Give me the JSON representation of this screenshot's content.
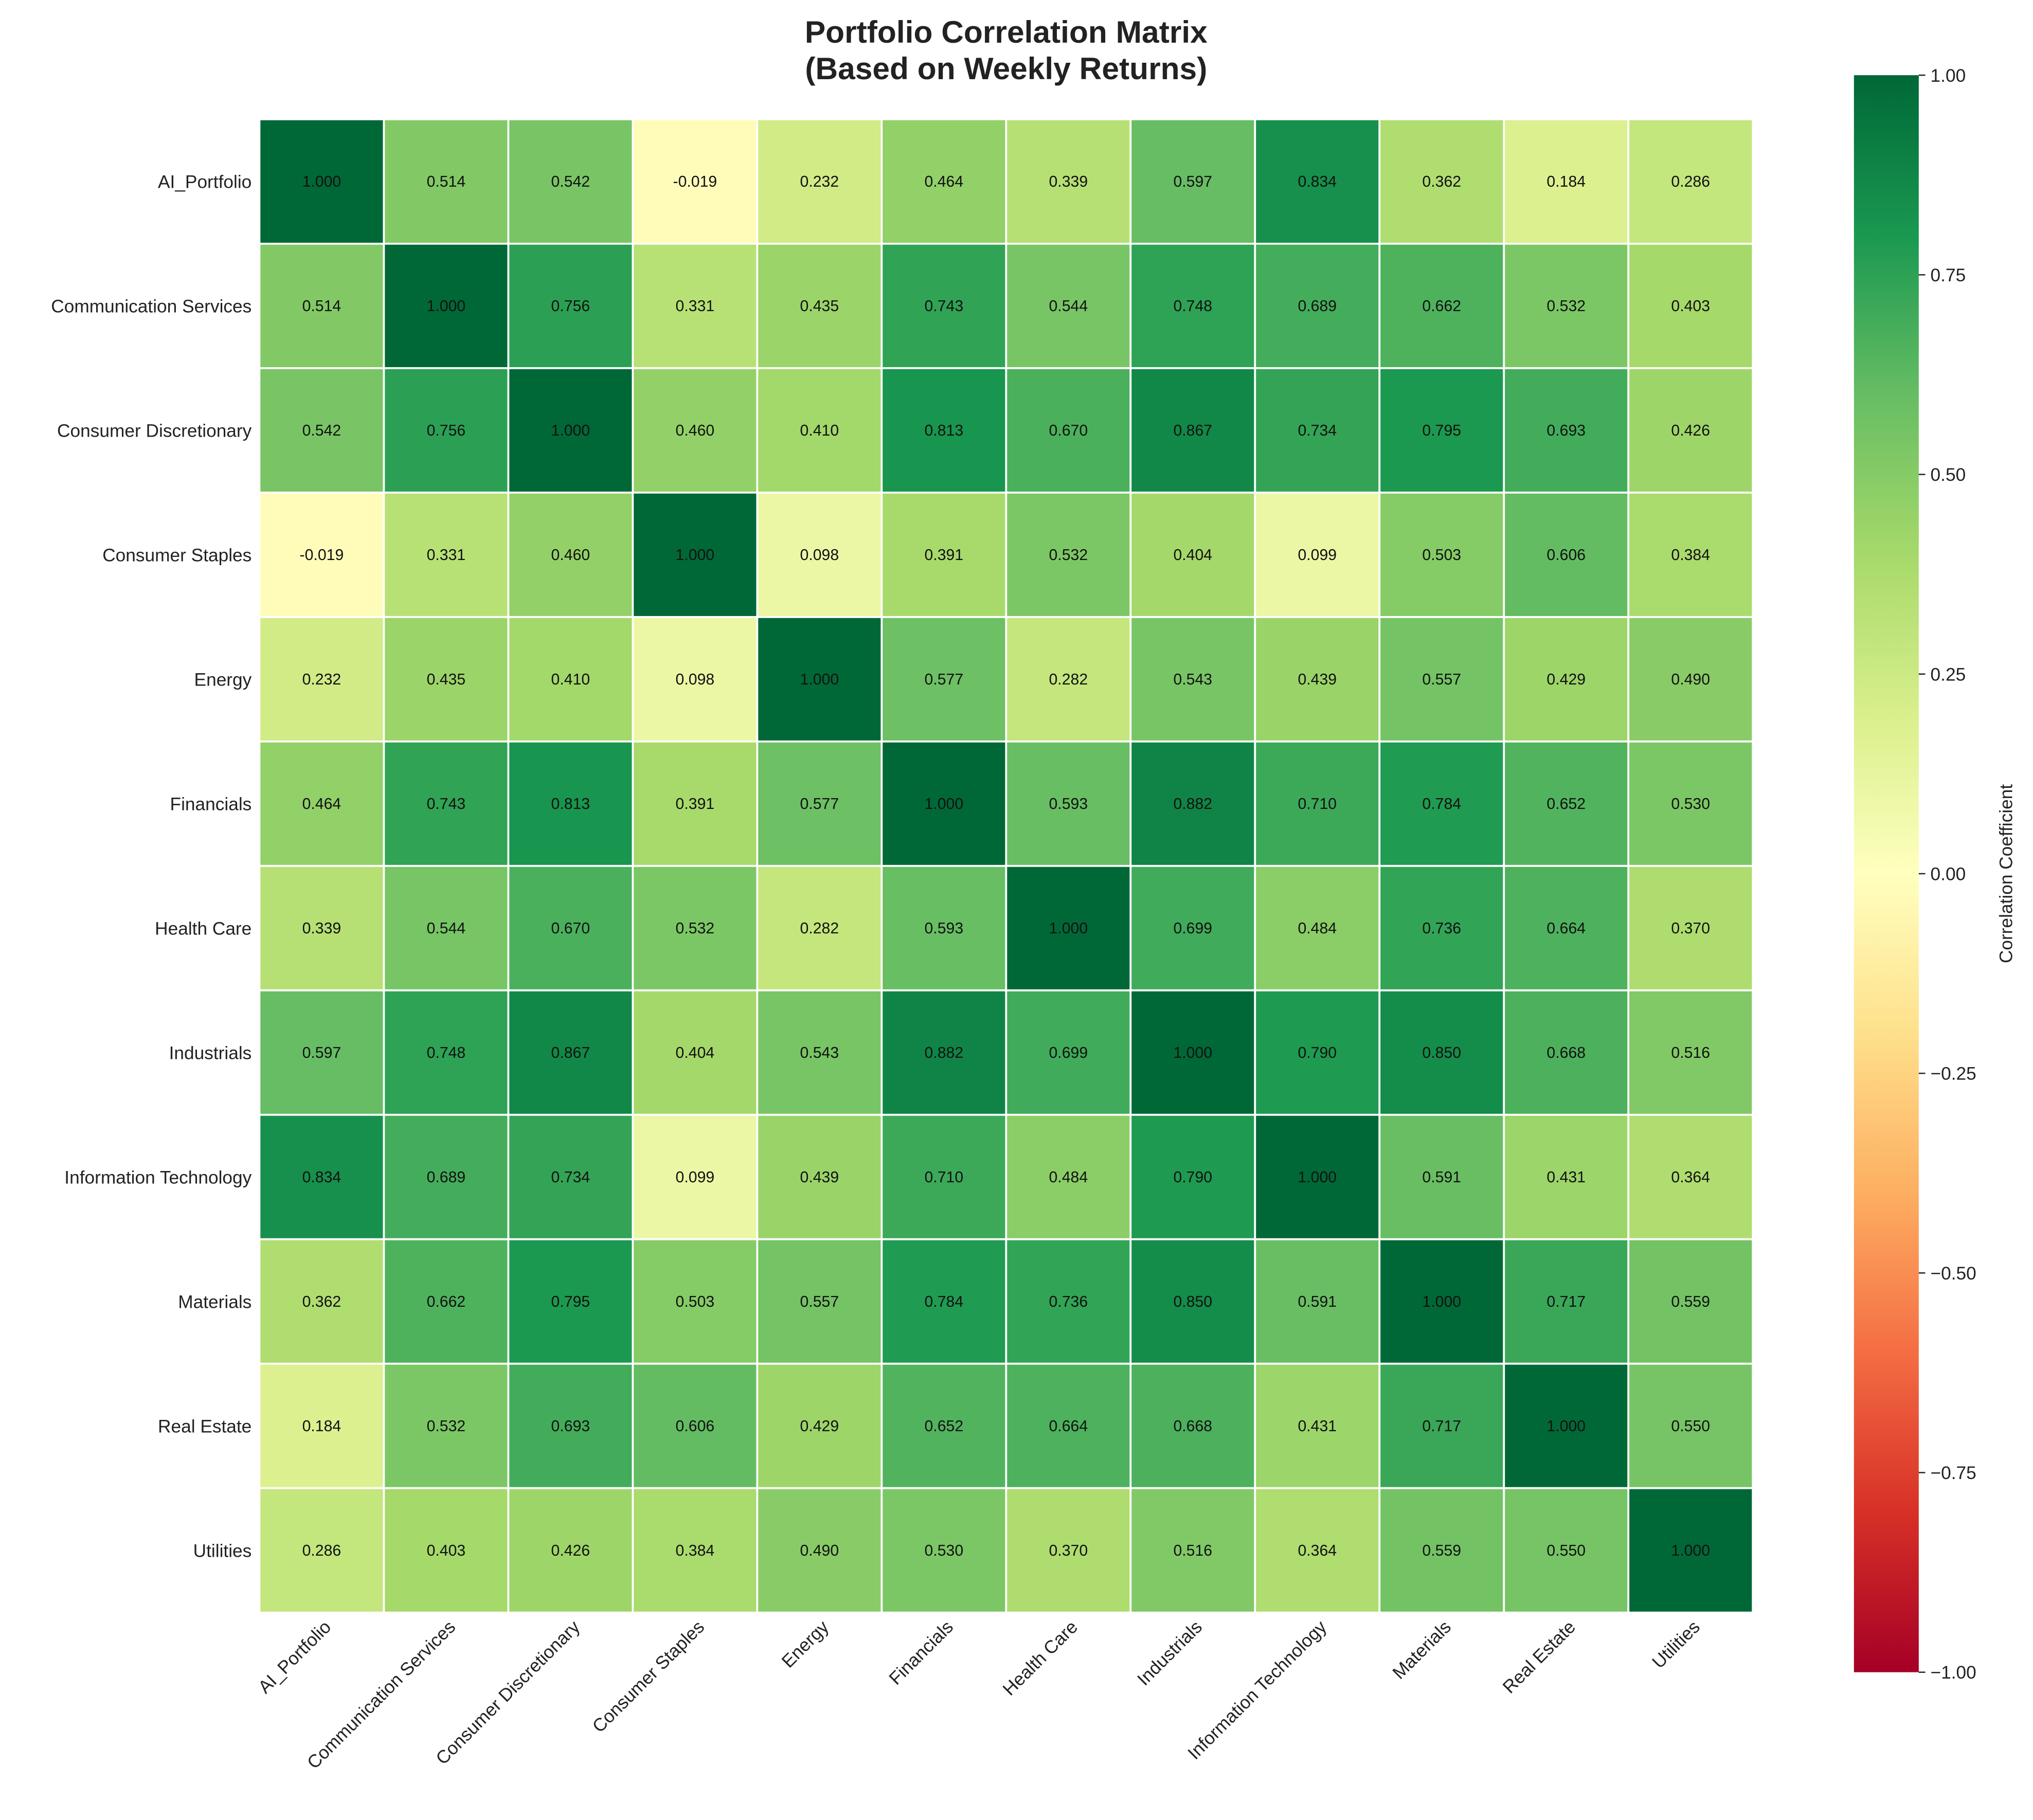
{
  "chart_data": {
    "type": "heatmap",
    "title": [
      "Portfolio Correlation Matrix",
      "(Based on Weekly Returns)"
    ],
    "labels": [
      "AI_Portfolio",
      "Communication Services",
      "Consumer Discretionary",
      "Consumer Staples",
      "Energy",
      "Financials",
      "Health Care",
      "Industrials",
      "Information Technology",
      "Materials",
      "Real Estate",
      "Utilities"
    ],
    "values": [
      [
        1.0,
        0.514,
        0.542,
        -0.019,
        0.232,
        0.464,
        0.339,
        0.597,
        0.834,
        0.362,
        0.184,
        0.286
      ],
      [
        0.514,
        1.0,
        0.756,
        0.331,
        0.435,
        0.743,
        0.544,
        0.748,
        0.689,
        0.662,
        0.532,
        0.403
      ],
      [
        0.542,
        0.756,
        1.0,
        0.46,
        0.41,
        0.813,
        0.67,
        0.867,
        0.734,
        0.795,
        0.693,
        0.426
      ],
      [
        -0.019,
        0.331,
        0.46,
        1.0,
        0.098,
        0.391,
        0.532,
        0.404,
        0.099,
        0.503,
        0.606,
        0.384
      ],
      [
        0.232,
        0.435,
        0.41,
        0.098,
        1.0,
        0.577,
        0.282,
        0.543,
        0.439,
        0.557,
        0.429,
        0.49
      ],
      [
        0.464,
        0.743,
        0.813,
        0.391,
        0.577,
        1.0,
        0.593,
        0.882,
        0.71,
        0.784,
        0.652,
        0.53
      ],
      [
        0.339,
        0.544,
        0.67,
        0.532,
        0.282,
        0.593,
        1.0,
        0.699,
        0.484,
        0.736,
        0.664,
        0.37
      ],
      [
        0.597,
        0.748,
        0.867,
        0.404,
        0.543,
        0.882,
        0.699,
        1.0,
        0.79,
        0.85,
        0.668,
        0.516
      ],
      [
        0.834,
        0.689,
        0.734,
        0.099,
        0.439,
        0.71,
        0.484,
        0.79,
        1.0,
        0.591,
        0.431,
        0.364
      ],
      [
        0.362,
        0.662,
        0.795,
        0.503,
        0.557,
        0.784,
        0.736,
        0.85,
        0.591,
        1.0,
        0.717,
        0.559
      ],
      [
        0.184,
        0.532,
        0.693,
        0.606,
        0.429,
        0.652,
        0.664,
        0.668,
        0.431,
        0.717,
        1.0,
        0.55
      ],
      [
        0.286,
        0.403,
        0.426,
        0.384,
        0.49,
        0.53,
        0.37,
        0.516,
        0.364,
        0.559,
        0.55,
        1.0
      ]
    ],
    "colormap": "RdYlGn",
    "vmin": -1,
    "vmax": 1,
    "colorbar": {
      "label": "Correlation Coefficient",
      "ticks": [
        "1.00",
        "0.75",
        "0.50",
        "0.25",
        "0.00",
        "−0.25",
        "−0.50",
        "−0.75",
        "−1.00"
      ],
      "tick_values": [
        1,
        0.75,
        0.5,
        0.25,
        0,
        -0.25,
        -0.5,
        -0.75,
        -1
      ]
    }
  }
}
